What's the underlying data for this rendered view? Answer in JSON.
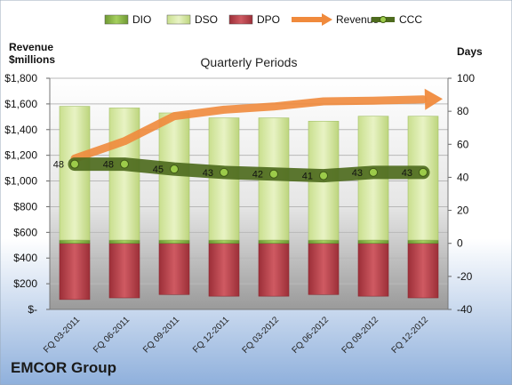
{
  "company": "EMCOR Group",
  "chart_data": {
    "type": "bar",
    "title": "Quarterly Periods",
    "left_axis_title": [
      "Revenue",
      "$millions"
    ],
    "right_axis_title": "Days",
    "categories": [
      "FQ 03-2011",
      "FQ 06-2011",
      "FQ 09-2011",
      "FQ 12-2011",
      "FQ 03-2012",
      "FQ 06-2012",
      "FQ 09-2012",
      "FQ 12-2012"
    ],
    "left_axis": {
      "ylim": [
        0,
        1800
      ],
      "ticks": [
        0,
        200,
        400,
        600,
        800,
        1000,
        1200,
        1400,
        1600,
        1800
      ],
      "tick_labels": [
        "$-",
        "$200",
        "$400",
        "$600",
        "$800",
        "$1,000",
        "$1,200",
        "$1,400",
        "$1,600",
        "$1,800"
      ]
    },
    "right_axis": {
      "ylim": [
        -40,
        100
      ],
      "ticks": [
        -40,
        -20,
        0,
        20,
        40,
        60,
        80,
        100
      ],
      "tick_labels": [
        "-40",
        "-20",
        "0",
        "20",
        "40",
        "60",
        "80",
        "100"
      ]
    },
    "legend": {
      "position": "top",
      "entries": [
        {
          "name": "DIO",
          "color": "#86b446"
        },
        {
          "name": "DSO",
          "color": "#d9eaa8"
        },
        {
          "name": "DPO",
          "color": "#b8404a"
        },
        {
          "name": "Revenue",
          "color": "#f08a3c"
        },
        {
          "name": "CCC",
          "color": "#4e6b1e"
        }
      ]
    },
    "series": [
      {
        "name": "DIO",
        "axis": "right",
        "kind": "stacked-bar",
        "color": "#86b446",
        "values": [
          2,
          2,
          2,
          2,
          2,
          2,
          2,
          2
        ]
      },
      {
        "name": "DSO",
        "axis": "right",
        "kind": "stacked-bar",
        "color": "#d9eaa8",
        "values": [
          81,
          80,
          77,
          74,
          74,
          72,
          75,
          75
        ]
      },
      {
        "name": "DPO",
        "axis": "right",
        "kind": "negative-bar",
        "color": "#b8404a",
        "values": [
          -34,
          -33,
          -31,
          -32,
          -32,
          -31,
          -32,
          -33
        ]
      },
      {
        "name": "Revenue",
        "axis": "left",
        "kind": "arrow-line",
        "color": "#f08a3c",
        "values": [
          1175,
          1310,
          1505,
          1555,
          1580,
          1620,
          1625,
          1635
        ]
      },
      {
        "name": "CCC",
        "axis": "right",
        "kind": "line",
        "color": "#4e6b1e",
        "values": [
          48,
          48,
          45,
          43,
          42,
          41,
          43,
          43
        ]
      }
    ],
    "ccc_labels": [
      "48",
      "48",
      "45",
      "43",
      "42",
      "41",
      "43",
      "43"
    ],
    "grid": true
  }
}
